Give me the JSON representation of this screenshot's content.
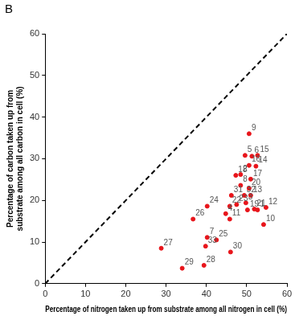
{
  "chart_data": {
    "type": "scatter",
    "panel_label": "B",
    "x_label": "Percentage of nitrogen taken up from substrate among all nitrogen in cell (%)",
    "y_label": [
      "Percentage of carbon taken up from",
      "substrate among all carbon in cell (%)"
    ],
    "point_labels": [
      "1",
      "2",
      "3",
      "4",
      "5",
      "6",
      "7",
      "8",
      "9",
      "10",
      "11",
      "12",
      "13",
      "14",
      "15",
      "16",
      "17",
      "18",
      "19",
      "20",
      "21",
      "22",
      "23",
      "24",
      "25",
      "26",
      "27",
      "28",
      "29",
      "30",
      "31",
      "32",
      "33"
    ],
    "x": [
      52.7,
      48.5,
      49.8,
      44.8,
      49.6,
      51.3,
      40.2,
      48.5,
      50.6,
      54.2,
      45.8,
      54.8,
      51.0,
      52.3,
      52.7,
      50.6,
      51.0,
      47.3,
      50.2,
      50.6,
      51.9,
      45.8,
      47.5,
      40.2,
      42.5,
      36.7,
      28.8,
      39.4,
      34.0,
      46.0,
      46.2,
      49.4,
      39.8
    ],
    "values": [
      17.7,
      26.2,
      19.4,
      16.8,
      30.8,
      30.6,
      11.1,
      23.6,
      36.0,
      14.2,
      15.5,
      18.3,
      21.2,
      28.2,
      30.8,
      28.4,
      25.1,
      26.0,
      17.7,
      22.9,
      17.9,
      18.6,
      19.0,
      18.6,
      10.5,
      15.5,
      8.5,
      4.4,
      3.7,
      7.6,
      21.2,
      21.2,
      9.0
    ],
    "color": "#e8151b",
    "marker": "circle",
    "reference_line": {
      "x": [
        0,
        60
      ],
      "y": [
        0,
        60
      ],
      "line_style": "dashed",
      "color": "#000000"
    },
    "xlim": [
      0,
      60
    ],
    "ylim": [
      0,
      60
    ],
    "xticks": [
      0,
      10,
      20,
      30,
      40,
      50,
      60
    ],
    "yticks": [
      0,
      10,
      20,
      30,
      40,
      50,
      60
    ],
    "grid": false
  }
}
